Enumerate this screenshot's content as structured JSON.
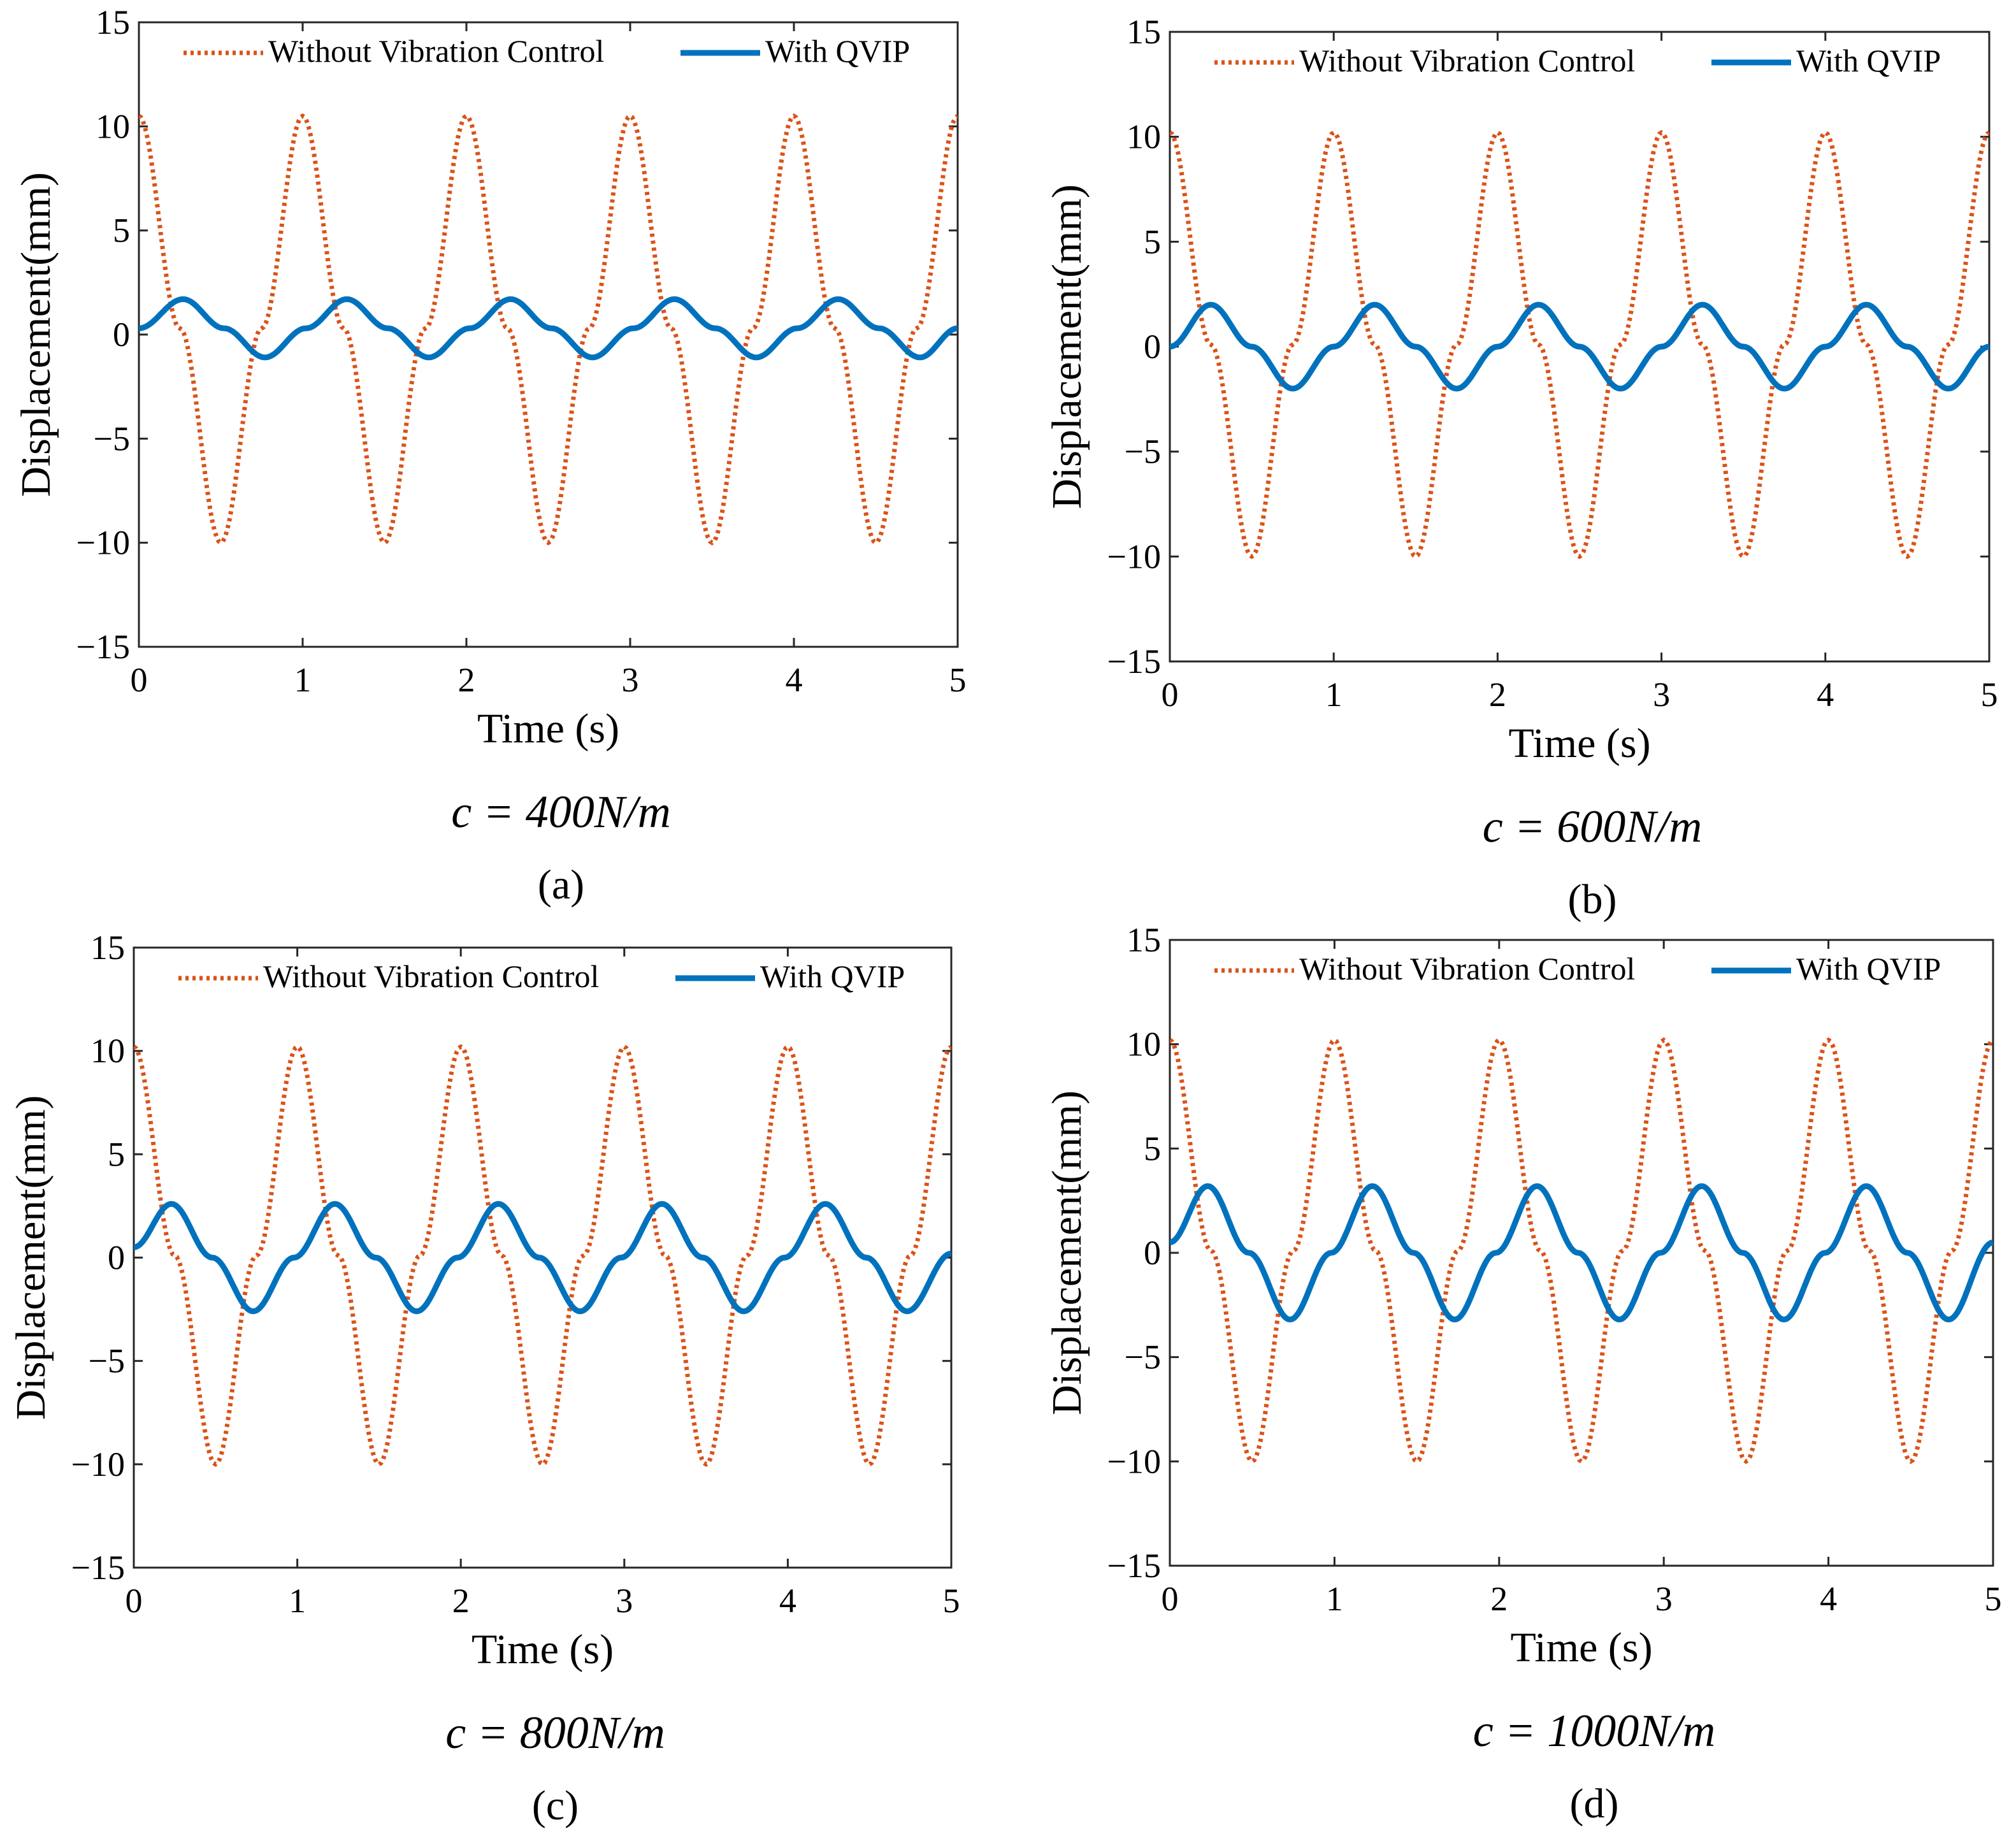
{
  "figure": {
    "colors": {
      "without": "#D95319",
      "with": "#0072BD",
      "axis": "#262626",
      "text": "#000000"
    }
  },
  "chart_data": [
    {
      "id": "a",
      "type": "line",
      "param_label": "c = 400N/m",
      "panel_label": "(a)",
      "xlabel": "Time (s)",
      "ylabel": "Displacement(mm)",
      "xlim": [
        0,
        5
      ],
      "ylim": [
        -15,
        15
      ],
      "xticks": [
        0,
        1,
        2,
        3,
        4,
        5
      ],
      "yticks": [
        15,
        10,
        5,
        0,
        -5,
        -10,
        -15
      ],
      "ytick_labels": [
        "15",
        "10",
        "5",
        "0",
        "−5",
        "−10",
        "−15"
      ],
      "grid": false,
      "legend_position": "top",
      "series": [
        {
          "name": "Without Vibration Control",
          "style": "dotted",
          "color_key": "without",
          "x": [
            0,
            0.25,
            0.5,
            0.75,
            1.0,
            1.25,
            1.5,
            1.75,
            2.0,
            2.25,
            2.5,
            2.75,
            3.0,
            3.25,
            3.5,
            3.75,
            4.0,
            4.25,
            4.5,
            4.75,
            5.0
          ],
          "y": [
            10.5,
            0.3,
            -10,
            0.3,
            10.5,
            0.3,
            -10,
            0.3,
            10.5,
            0.3,
            -10,
            0.3,
            10.5,
            0.3,
            -10,
            0.3,
            10.5,
            0.3,
            -10,
            0.3,
            10.5
          ]
        },
        {
          "name": "With QVIP",
          "style": "solid",
          "color_key": "with",
          "x": [
            0,
            0.27,
            0.52,
            0.77,
            1.02,
            1.27,
            1.52,
            1.77,
            2.02,
            2.27,
            2.52,
            2.77,
            3.02,
            3.27,
            3.52,
            3.77,
            4.02,
            4.27,
            4.52,
            4.77,
            5.0
          ],
          "y": [
            0.3,
            1.7,
            0.3,
            -1.1,
            0.3,
            1.7,
            0.3,
            -1.1,
            0.3,
            1.7,
            0.3,
            -1.1,
            0.3,
            1.7,
            0.3,
            -1.1,
            0.3,
            1.7,
            0.3,
            -1.1,
            0.3
          ]
        }
      ]
    },
    {
      "id": "b",
      "type": "line",
      "param_label": "c = 600N/m",
      "panel_label": "(b)",
      "xlabel": "Time (s)",
      "ylabel": "Displacement(mm)",
      "xlim": [
        0,
        5
      ],
      "ylim": [
        -15,
        15
      ],
      "xticks": [
        0,
        1,
        2,
        3,
        4,
        5
      ],
      "yticks": [
        15,
        10,
        5,
        0,
        -5,
        -10,
        -15
      ],
      "ytick_labels": [
        "15",
        "10",
        "5",
        "0",
        "−5",
        "−10",
        "−15"
      ],
      "grid": false,
      "legend_position": "top",
      "series": [
        {
          "name": "Without Vibration Control",
          "style": "dotted",
          "color_key": "without",
          "x": [
            0,
            0.25,
            0.5,
            0.75,
            1.0,
            1.25,
            1.5,
            1.75,
            2.0,
            2.25,
            2.5,
            2.75,
            3.0,
            3.25,
            3.5,
            3.75,
            4.0,
            4.25,
            4.5,
            4.75,
            5.0
          ],
          "y": [
            10.2,
            0.1,
            -10,
            0.1,
            10.2,
            0.1,
            -10,
            0.1,
            10.2,
            0.1,
            -10,
            0.1,
            10.2,
            0.1,
            -10,
            0.1,
            10.2,
            0.1,
            -10,
            0.1,
            10.2
          ]
        },
        {
          "name": "With QVIP",
          "style": "solid",
          "color_key": "with",
          "x": [
            0,
            0.25,
            0.5,
            0.75,
            1.0,
            1.25,
            1.5,
            1.75,
            2.0,
            2.25,
            2.5,
            2.75,
            3.0,
            3.25,
            3.5,
            3.75,
            4.0,
            4.25,
            4.5,
            4.75,
            5.0
          ],
          "y": [
            0,
            2.0,
            0,
            -2.0,
            0,
            2.0,
            0,
            -2.0,
            0,
            2.0,
            0,
            -2.0,
            0,
            2.0,
            0,
            -2.0,
            0,
            2.0,
            0,
            -2.0,
            0
          ]
        }
      ]
    },
    {
      "id": "c",
      "type": "line",
      "param_label": "c = 800N/m",
      "panel_label": "(c)",
      "xlabel": "Time (s)",
      "ylabel": "Displacement(mm)",
      "xlim": [
        0,
        5
      ],
      "ylim": [
        -15,
        15
      ],
      "xticks": [
        0,
        1,
        2,
        3,
        4,
        5
      ],
      "yticks": [
        15,
        10,
        5,
        0,
        -5,
        -10,
        -15
      ],
      "ytick_labels": [
        "15",
        "10",
        "5",
        "0",
        "−5",
        "−10",
        "−15"
      ],
      "grid": false,
      "legend_position": "top",
      "series": [
        {
          "name": "Without Vibration Control",
          "style": "dotted",
          "color_key": "without",
          "x": [
            0,
            0.25,
            0.5,
            0.75,
            1.0,
            1.25,
            1.5,
            1.75,
            2.0,
            2.25,
            2.5,
            2.75,
            3.0,
            3.25,
            3.5,
            3.75,
            4.0,
            4.25,
            4.5,
            4.75,
            5.0
          ],
          "y": [
            10.2,
            0.1,
            -10,
            0.1,
            10.2,
            0.1,
            -10,
            0.1,
            10.2,
            0.1,
            -10,
            0.1,
            10.2,
            0.1,
            -10,
            0.1,
            10.2,
            0.1,
            -10,
            0.1,
            10.2
          ]
        },
        {
          "name": "With QVIP",
          "style": "solid",
          "color_key": "with",
          "x": [
            0,
            0.23,
            0.48,
            0.73,
            0.98,
            1.23,
            1.48,
            1.73,
            1.98,
            2.23,
            2.48,
            2.73,
            2.98,
            3.23,
            3.48,
            3.73,
            3.98,
            4.23,
            4.48,
            4.73,
            5.0
          ],
          "y": [
            0.5,
            2.6,
            0,
            -2.6,
            0,
            2.6,
            0,
            -2.6,
            0,
            2.6,
            0,
            -2.6,
            0,
            2.6,
            0,
            -2.6,
            0,
            2.6,
            0,
            -2.6,
            0.2
          ]
        }
      ]
    },
    {
      "id": "d",
      "type": "line",
      "param_label": "c = 1000N/m",
      "panel_label": "(d)",
      "xlabel": "Time (s)",
      "ylabel": "Displacement(mm)",
      "xlim": [
        0,
        5
      ],
      "ylim": [
        -15,
        15
      ],
      "xticks": [
        0,
        1,
        2,
        3,
        4,
        5
      ],
      "yticks": [
        15,
        10,
        5,
        0,
        -5,
        -10,
        -15
      ],
      "ytick_labels": [
        "15",
        "10",
        "5",
        "0",
        "−5",
        "−10",
        "−15"
      ],
      "grid": false,
      "legend_position": "top",
      "series": [
        {
          "name": "Without Vibration Control",
          "style": "dotted",
          "color_key": "without",
          "x": [
            0,
            0.25,
            0.5,
            0.75,
            1.0,
            1.25,
            1.5,
            1.75,
            2.0,
            2.25,
            2.5,
            2.75,
            3.0,
            3.25,
            3.5,
            3.75,
            4.0,
            4.25,
            4.5,
            4.75,
            5.0
          ],
          "y": [
            10.2,
            0.1,
            -10,
            0.1,
            10.2,
            0.1,
            -10,
            0.1,
            10.2,
            0.1,
            -10,
            0.1,
            10.2,
            0.1,
            -10,
            0.1,
            10.2,
            0.1,
            -10,
            0.1,
            10.2
          ]
        },
        {
          "name": "With QVIP",
          "style": "solid",
          "color_key": "with",
          "x": [
            0,
            0.23,
            0.48,
            0.73,
            0.98,
            1.23,
            1.48,
            1.73,
            1.98,
            2.23,
            2.48,
            2.73,
            2.98,
            3.23,
            3.48,
            3.73,
            3.98,
            4.23,
            4.48,
            4.73,
            5.0
          ],
          "y": [
            0.5,
            3.2,
            0,
            -3.2,
            0,
            3.2,
            0,
            -3.2,
            0,
            3.2,
            0,
            -3.2,
            0,
            3.2,
            0,
            -3.2,
            0,
            3.2,
            0,
            -3.2,
            0.5
          ]
        }
      ]
    }
  ]
}
